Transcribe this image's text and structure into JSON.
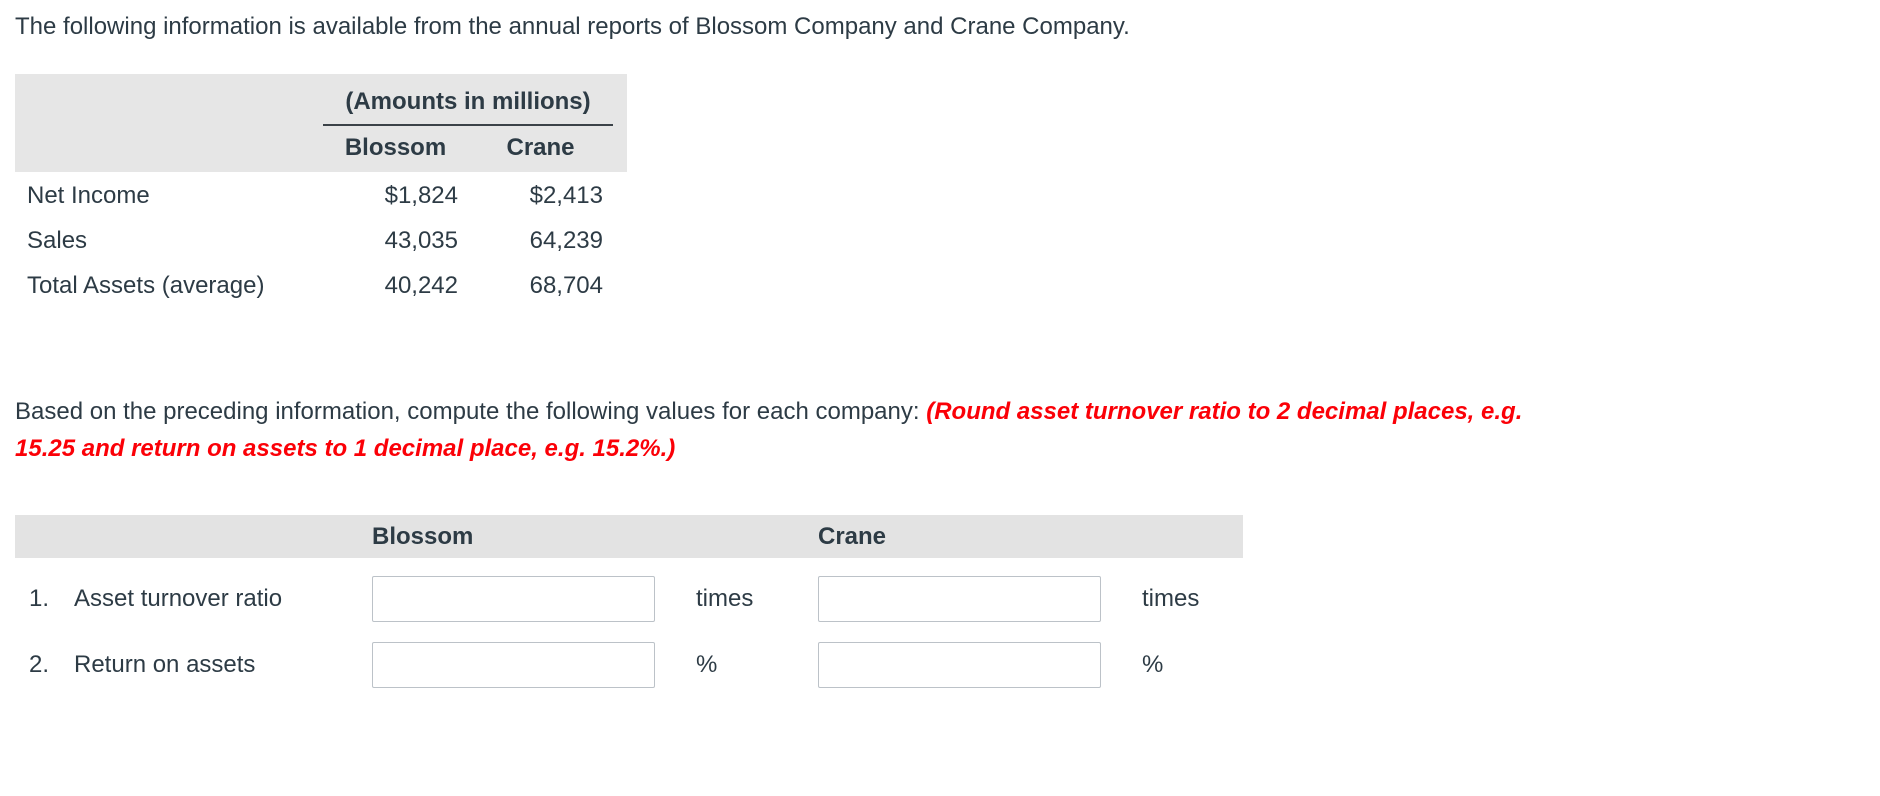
{
  "intro": "The following information is available from the annual reports of Blossom Company and Crane Company.",
  "data_table": {
    "header_group": "(Amounts in millions)",
    "columns": [
      "Blossom",
      "Crane"
    ],
    "rows": [
      {
        "label": "Net Income",
        "values": [
          "$1,824",
          "$2,413"
        ]
      },
      {
        "label": "Sales",
        "values": [
          "43,035",
          "64,239"
        ]
      },
      {
        "label": "Total Assets (average)",
        "values": [
          "40,242",
          "68,704"
        ]
      }
    ]
  },
  "instruction": {
    "normal": "Based on the preceding information, compute the following values for each company: ",
    "emphasis": "(Round asset turnover ratio to 2 decimal places, e.g. 15.25 and return on assets to 1 decimal place, e.g. 15.2%.)"
  },
  "answer_table": {
    "columns": [
      "Blossom",
      "Crane"
    ],
    "rows": [
      {
        "num": "1.",
        "label": "Asset turnover ratio",
        "unit": "times"
      },
      {
        "num": "2.",
        "label": "Return on assets",
        "unit": "%"
      }
    ],
    "input_value": "",
    "input_placeholder": ""
  },
  "colors": {
    "text": "#2d3b45",
    "table_header_bg": "#e6e6e6",
    "answer_header_bg": "#e3e3e3",
    "emphasis_red": "#fb0007",
    "input_border": "#bcc2c8"
  }
}
